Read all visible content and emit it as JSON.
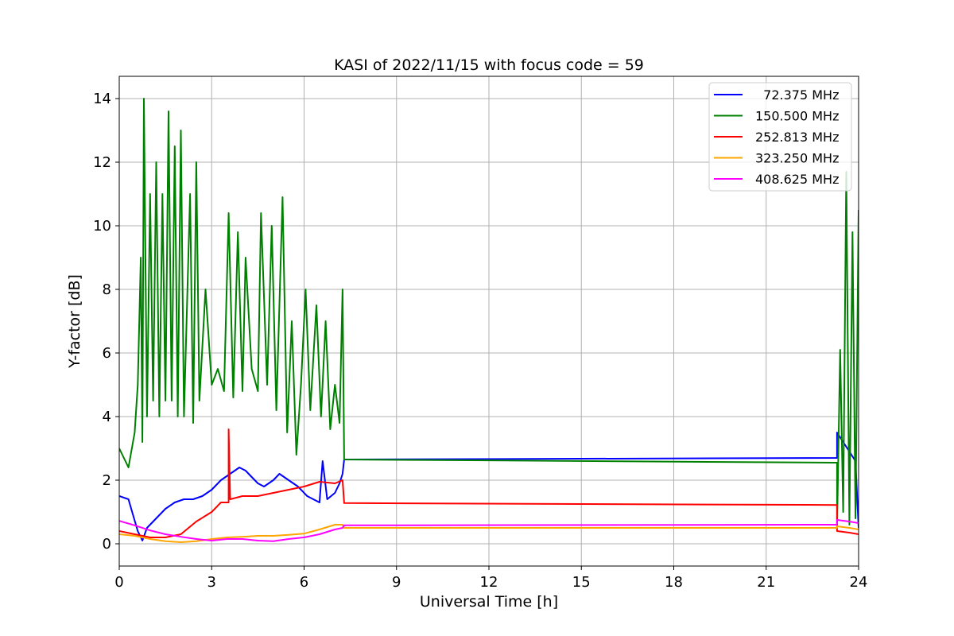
{
  "chart_data": {
    "type": "line",
    "title": "KASI of 2022/11/15 with focus code = 59",
    "xlabel": "Universal Time [h]",
    "ylabel": "Y-factor [dB]",
    "xlim": [
      0,
      24
    ],
    "ylim": [
      -0.7,
      14.7
    ],
    "xticks": [
      0,
      3,
      6,
      9,
      12,
      15,
      18,
      21,
      24
    ],
    "yticks": [
      0,
      2,
      4,
      6,
      8,
      10,
      12,
      14
    ],
    "grid": true,
    "legend_position": "top-right",
    "series": [
      {
        "name": "72.375 MHz",
        "label": "  72.375 MHz",
        "color": "#0000ff",
        "points": [
          [
            0,
            1.5
          ],
          [
            0.3,
            1.4
          ],
          [
            0.45,
            0.9
          ],
          [
            0.6,
            0.4
          ],
          [
            0.75,
            0.1
          ],
          [
            0.9,
            0.5
          ],
          [
            1.2,
            0.8
          ],
          [
            1.5,
            1.1
          ],
          [
            1.8,
            1.3
          ],
          [
            2.1,
            1.4
          ],
          [
            2.4,
            1.4
          ],
          [
            2.7,
            1.5
          ],
          [
            3.0,
            1.7
          ],
          [
            3.3,
            2.0
          ],
          [
            3.6,
            2.2
          ],
          [
            3.9,
            2.4
          ],
          [
            4.1,
            2.3
          ],
          [
            4.3,
            2.1
          ],
          [
            4.5,
            1.9
          ],
          [
            4.7,
            1.8
          ],
          [
            5.0,
            2.0
          ],
          [
            5.2,
            2.2
          ],
          [
            5.5,
            2.0
          ],
          [
            5.8,
            1.8
          ],
          [
            6.1,
            1.5
          ],
          [
            6.3,
            1.4
          ],
          [
            6.5,
            1.3
          ],
          [
            6.6,
            2.6
          ],
          [
            6.75,
            1.4
          ],
          [
            7.0,
            1.6
          ],
          [
            7.15,
            1.9
          ],
          [
            7.25,
            2.2
          ],
          [
            7.3,
            2.65
          ],
          [
            23.3,
            2.7
          ],
          [
            23.3,
            3.5
          ],
          [
            23.5,
            3.2
          ],
          [
            23.7,
            2.9
          ],
          [
            23.9,
            2.6
          ],
          [
            24,
            0.5
          ]
        ]
      },
      {
        "name": "150.500 MHz",
        "label": "150.500 MHz",
        "color": "#008000",
        "points": [
          [
            0,
            3.0
          ],
          [
            0.3,
            2.4
          ],
          [
            0.5,
            3.5
          ],
          [
            0.6,
            5.0
          ],
          [
            0.7,
            9.0
          ],
          [
            0.75,
            3.2
          ],
          [
            0.8,
            14.0
          ],
          [
            0.9,
            4.0
          ],
          [
            1.0,
            11.0
          ],
          [
            1.1,
            4.5
          ],
          [
            1.2,
            12.0
          ],
          [
            1.3,
            4.0
          ],
          [
            1.4,
            11.0
          ],
          [
            1.5,
            4.5
          ],
          [
            1.6,
            13.6
          ],
          [
            1.7,
            4.5
          ],
          [
            1.8,
            12.5
          ],
          [
            1.9,
            4.0
          ],
          [
            2.0,
            13.0
          ],
          [
            2.1,
            4.0
          ],
          [
            2.3,
            11.0
          ],
          [
            2.4,
            3.8
          ],
          [
            2.5,
            12.0
          ],
          [
            2.6,
            4.5
          ],
          [
            2.8,
            8.0
          ],
          [
            3.0,
            5.0
          ],
          [
            3.2,
            5.5
          ],
          [
            3.4,
            4.8
          ],
          [
            3.55,
            10.4
          ],
          [
            3.7,
            4.6
          ],
          [
            3.85,
            9.8
          ],
          [
            4.0,
            4.8
          ],
          [
            4.1,
            9.0
          ],
          [
            4.3,
            5.5
          ],
          [
            4.5,
            4.8
          ],
          [
            4.6,
            10.4
          ],
          [
            4.8,
            5.0
          ],
          [
            4.95,
            10.0
          ],
          [
            5.1,
            4.2
          ],
          [
            5.3,
            10.9
          ],
          [
            5.45,
            3.5
          ],
          [
            5.6,
            7.0
          ],
          [
            5.75,
            2.8
          ],
          [
            5.9,
            5.0
          ],
          [
            6.05,
            8.0
          ],
          [
            6.2,
            4.2
          ],
          [
            6.4,
            7.5
          ],
          [
            6.55,
            4.0
          ],
          [
            6.7,
            7.0
          ],
          [
            6.85,
            3.6
          ],
          [
            7.0,
            5.0
          ],
          [
            7.15,
            3.8
          ],
          [
            7.25,
            8.0
          ],
          [
            7.3,
            2.65
          ],
          [
            23.3,
            2.55
          ],
          [
            23.3,
            0.5
          ],
          [
            23.4,
            6.1
          ],
          [
            23.5,
            1.0
          ],
          [
            23.6,
            11.7
          ],
          [
            23.7,
            0.6
          ],
          [
            23.8,
            9.8
          ],
          [
            23.9,
            0.8
          ],
          [
            24,
            10.5
          ]
        ]
      },
      {
        "name": "252.813 MHz",
        "label": "252.813 MHz",
        "color": "#ff0000",
        "points": [
          [
            0,
            0.4
          ],
          [
            0.5,
            0.3
          ],
          [
            1.0,
            0.2
          ],
          [
            1.5,
            0.2
          ],
          [
            2.0,
            0.3
          ],
          [
            2.5,
            0.7
          ],
          [
            3.0,
            1.0
          ],
          [
            3.3,
            1.3
          ],
          [
            3.55,
            1.3
          ],
          [
            3.55,
            3.6
          ],
          [
            3.6,
            1.4
          ],
          [
            4.0,
            1.5
          ],
          [
            4.5,
            1.5
          ],
          [
            5.0,
            1.6
          ],
          [
            5.5,
            1.7
          ],
          [
            6.0,
            1.8
          ],
          [
            6.5,
            1.95
          ],
          [
            7.0,
            1.9
          ],
          [
            7.25,
            2.0
          ],
          [
            7.3,
            1.28
          ],
          [
            23.3,
            1.22
          ],
          [
            23.3,
            0.4
          ],
          [
            23.7,
            0.35
          ],
          [
            24,
            0.3
          ]
        ]
      },
      {
        "name": "323.250 MHz",
        "label": "323.250 MHz",
        "color": "#ffa500",
        "points": [
          [
            0,
            0.3
          ],
          [
            0.5,
            0.25
          ],
          [
            1.0,
            0.15
          ],
          [
            1.5,
            0.08
          ],
          [
            2.0,
            0.05
          ],
          [
            2.5,
            0.08
          ],
          [
            3.0,
            0.15
          ],
          [
            3.5,
            0.2
          ],
          [
            4.0,
            0.22
          ],
          [
            4.5,
            0.25
          ],
          [
            5.0,
            0.25
          ],
          [
            5.5,
            0.28
          ],
          [
            6.0,
            0.32
          ],
          [
            6.5,
            0.45
          ],
          [
            7.0,
            0.6
          ],
          [
            7.25,
            0.6
          ],
          [
            7.3,
            0.5
          ],
          [
            23.3,
            0.5
          ],
          [
            23.3,
            0.55
          ],
          [
            23.7,
            0.5
          ],
          [
            24,
            0.45
          ]
        ]
      },
      {
        "name": "408.625 MHz",
        "label": "408.625 MHz",
        "color": "#ff00ff",
        "points": [
          [
            0,
            0.72
          ],
          [
            0.5,
            0.58
          ],
          [
            1.0,
            0.42
          ],
          [
            1.5,
            0.3
          ],
          [
            2.0,
            0.22
          ],
          [
            2.5,
            0.15
          ],
          [
            3.0,
            0.1
          ],
          [
            3.5,
            0.15
          ],
          [
            4.0,
            0.15
          ],
          [
            4.5,
            0.1
          ],
          [
            5.0,
            0.08
          ],
          [
            5.5,
            0.15
          ],
          [
            6.0,
            0.2
          ],
          [
            6.5,
            0.3
          ],
          [
            7.0,
            0.45
          ],
          [
            7.25,
            0.5
          ],
          [
            7.3,
            0.58
          ],
          [
            23.3,
            0.6
          ],
          [
            23.3,
            0.75
          ],
          [
            23.7,
            0.7
          ],
          [
            24,
            0.65
          ]
        ]
      }
    ]
  }
}
